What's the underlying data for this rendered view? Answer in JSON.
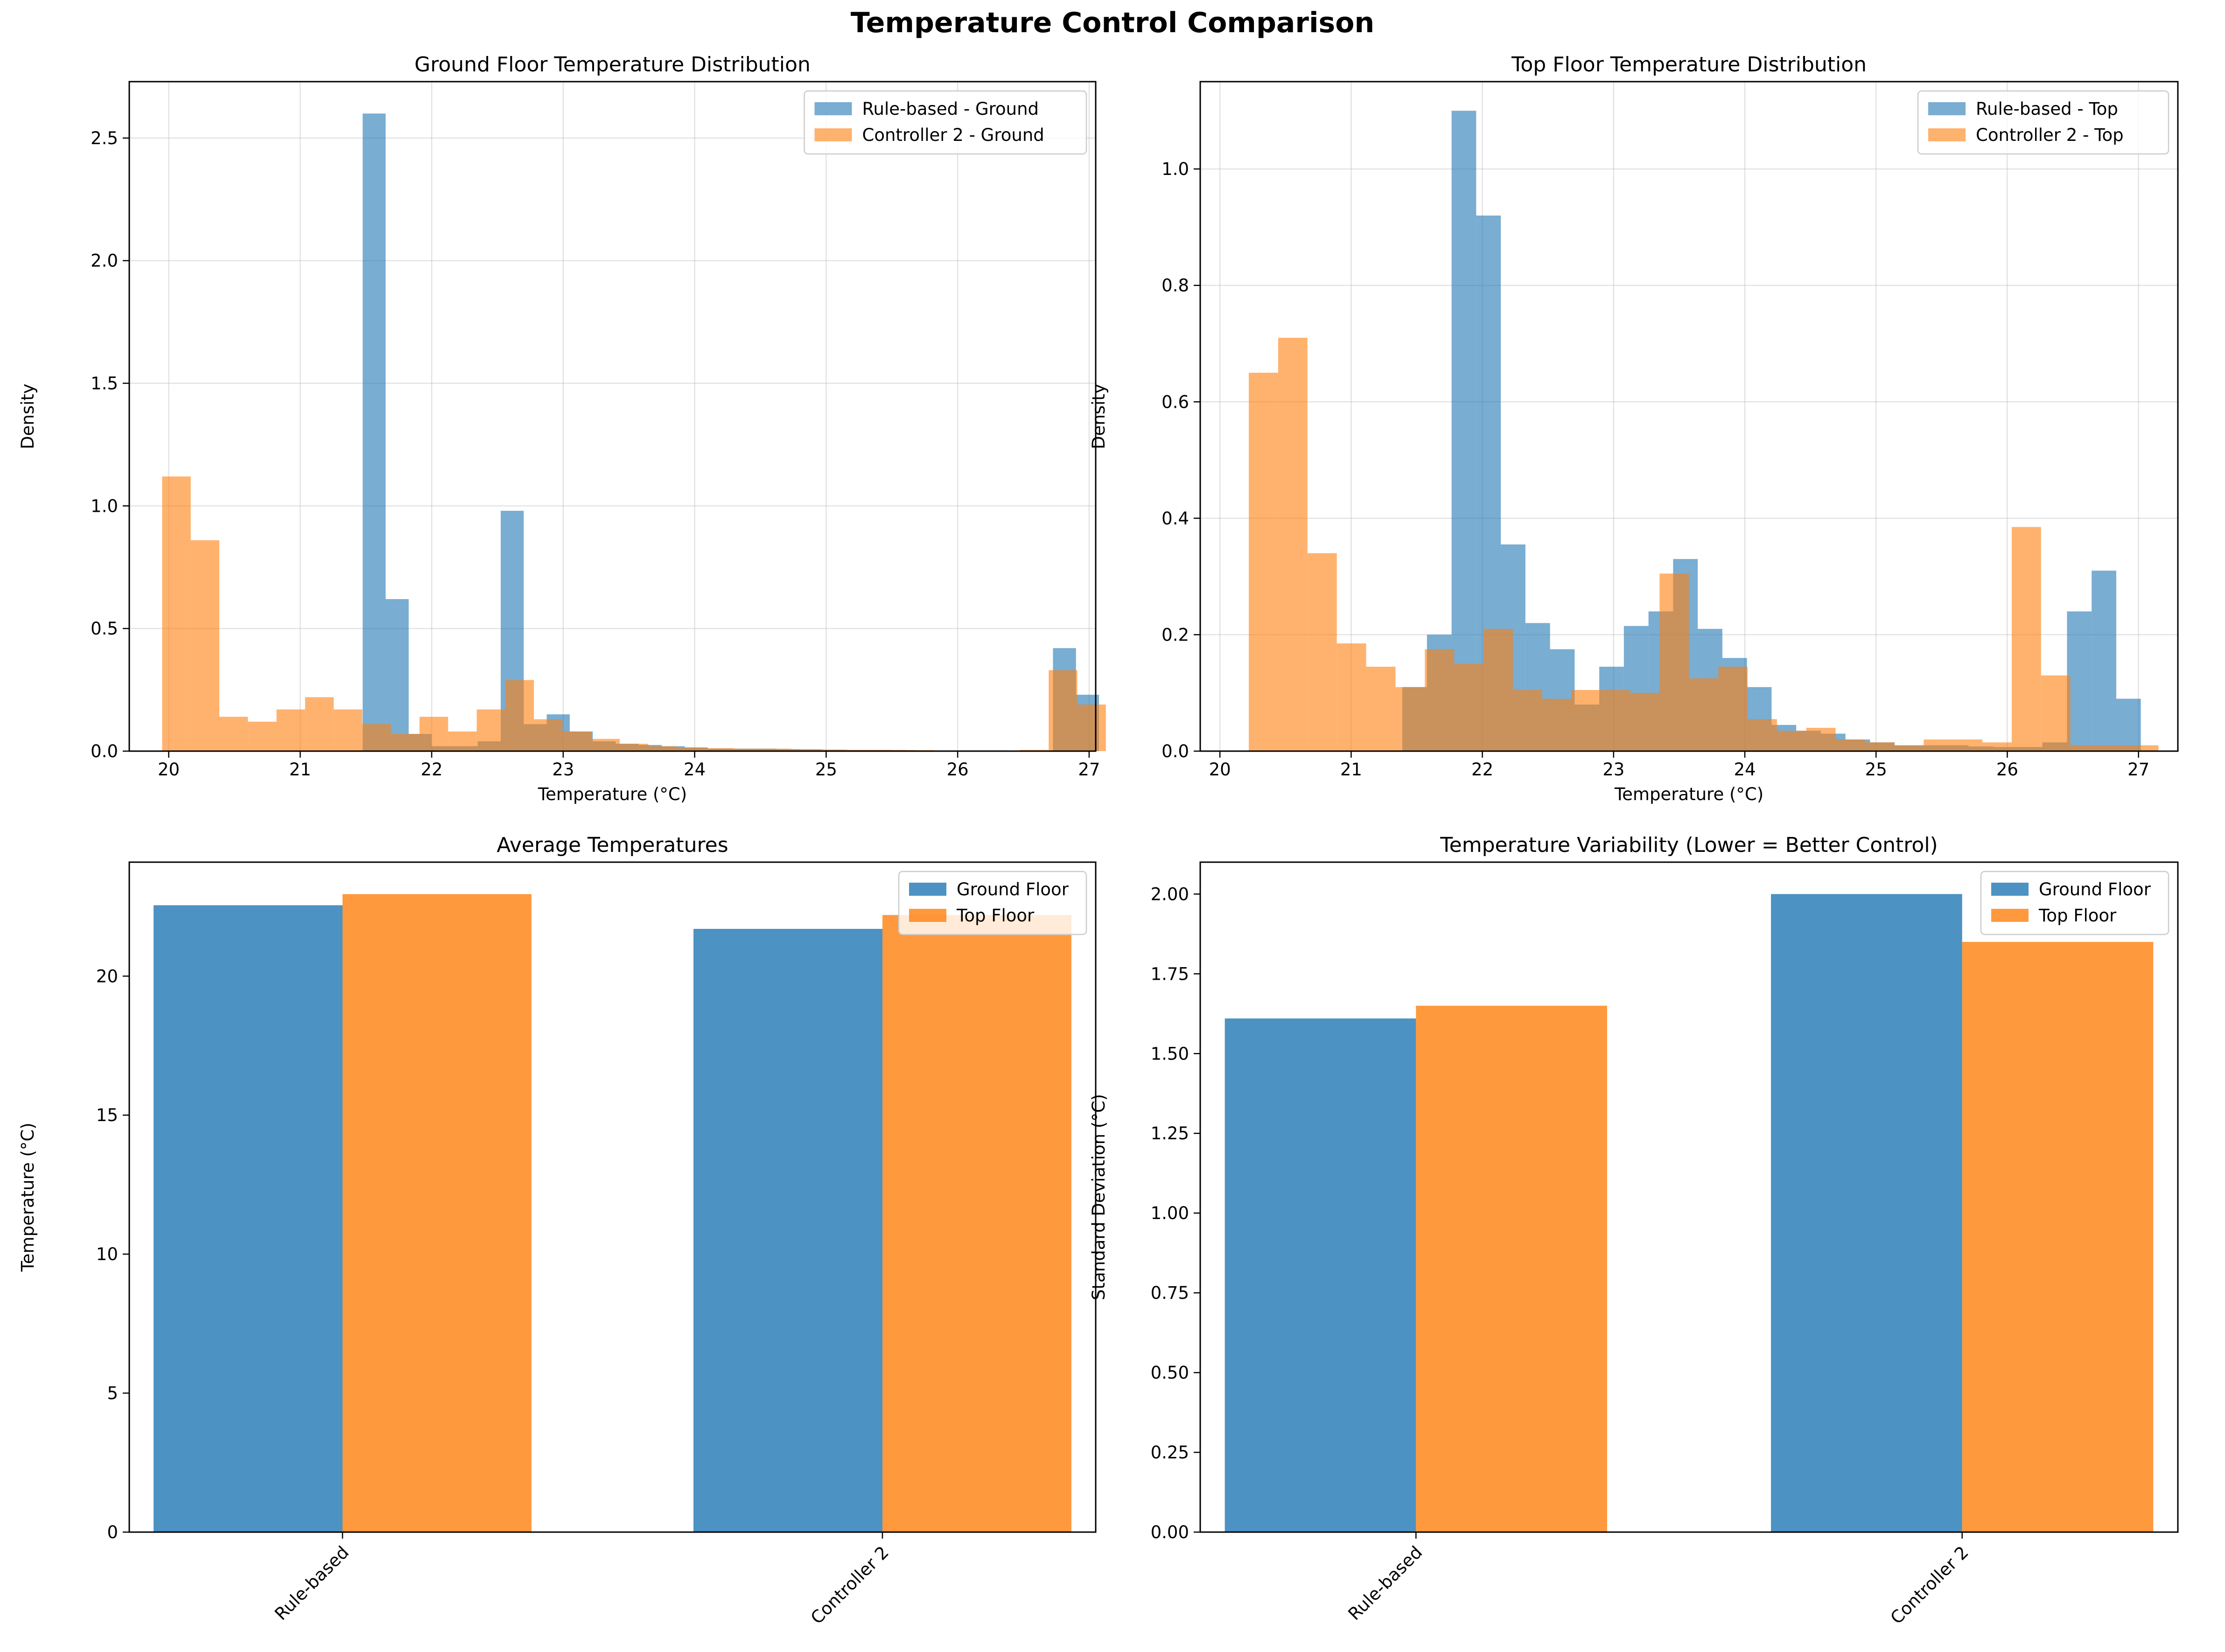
{
  "figure": {
    "title": "Temperature Control Comparison"
  },
  "colors": {
    "blue": "#1f77b4",
    "orange": "#ff7f0e"
  },
  "chart_data": [
    {
      "id": "ground",
      "type": "histogram",
      "title": "Ground Floor Temperature Distribution",
      "xlabel": "Temperature (°C)",
      "ylabel": "Density",
      "xlim": [
        19.7,
        27.05
      ],
      "ylim": [
        0,
        2.73
      ],
      "xticks": [
        20,
        21,
        22,
        23,
        24,
        25,
        26,
        27
      ],
      "yticks": [
        0.0,
        0.5,
        1.0,
        1.5,
        2.0,
        2.5
      ],
      "ytick_decimals": 1,
      "grid": true,
      "legend_position": "upper right",
      "series": [
        {
          "name": "Rule-based - Ground",
          "bin_start": 21.3,
          "bin_width": 0.175,
          "values": [
            0.0,
            2.6,
            0.62,
            0.07,
            0.02,
            0.02,
            0.04,
            0.98,
            0.11,
            0.15,
            0.08,
            0.04,
            0.03,
            0.025,
            0.02,
            0.015,
            0.01,
            0.01,
            0.01,
            0.008,
            0.007,
            0.006,
            0.005,
            0.005,
            0.004,
            0.003,
            0.003,
            0.003,
            0.003,
            0.002,
            0.002,
            0.42,
            0.23
          ]
        },
        {
          "name": "Controller 2 - Ground",
          "bin_start": 19.95,
          "bin_width": 0.2175,
          "values": [
            1.12,
            0.86,
            0.14,
            0.12,
            0.17,
            0.22,
            0.17,
            0.11,
            0.07,
            0.14,
            0.08,
            0.17,
            0.29,
            0.13,
            0.08,
            0.05,
            0.03,
            0.02,
            0.015,
            0.012,
            0.01,
            0.01,
            0.008,
            0.006,
            0.005,
            0.005,
            0.004,
            0.003,
            0.003,
            0.003,
            0.005,
            0.33,
            0.19
          ]
        }
      ]
    },
    {
      "id": "top",
      "type": "histogram",
      "title": "Top Floor Temperature Distribution",
      "xlabel": "Temperature (°C)",
      "ylabel": "Density",
      "xlim": [
        19.85,
        27.3
      ],
      "ylim": [
        0,
        1.15
      ],
      "xticks": [
        20,
        21,
        22,
        23,
        24,
        25,
        26,
        27
      ],
      "yticks": [
        0.0,
        0.2,
        0.4,
        0.6,
        0.8,
        1.0
      ],
      "ytick_decimals": 1,
      "grid": true,
      "legend_position": "upper right",
      "series": [
        {
          "name": "Rule-based - Top",
          "bin_start": 21.39,
          "bin_width": 0.1876,
          "values": [
            0.11,
            0.2,
            1.1,
            0.92,
            0.355,
            0.22,
            0.175,
            0.08,
            0.145,
            0.215,
            0.24,
            0.33,
            0.21,
            0.16,
            0.11,
            0.045,
            0.035,
            0.03,
            0.02,
            0.015,
            0.01,
            0.01,
            0.01,
            0.008,
            0.007,
            0.007,
            0.015,
            0.24,
            0.31,
            0.09
          ]
        },
        {
          "name": "Controller 2 - Top",
          "bin_start": 20.22,
          "bin_width": 0.2236,
          "values": [
            0.65,
            0.71,
            0.34,
            0.185,
            0.145,
            0.11,
            0.175,
            0.15,
            0.21,
            0.105,
            0.09,
            0.105,
            0.105,
            0.1,
            0.305,
            0.125,
            0.145,
            0.055,
            0.035,
            0.04,
            0.02,
            0.015,
            0.01,
            0.02,
            0.02,
            0.015,
            0.385,
            0.13,
            0.01,
            0.01,
            0.01
          ]
        }
      ]
    },
    {
      "id": "avg",
      "type": "bar",
      "title": "Average Temperatures",
      "xlabel": "",
      "ylabel": "Temperature (°C)",
      "categories": [
        "Rule-based",
        "Controller 2"
      ],
      "ylim": [
        0,
        24.1
      ],
      "yticks": [
        0,
        5,
        10,
        15,
        20
      ],
      "ytick_decimals": 0,
      "grid": false,
      "legend_position": "upper right",
      "series": [
        {
          "name": "Ground Floor",
          "values": [
            22.55,
            21.7
          ]
        },
        {
          "name": "Top Floor",
          "values": [
            22.95,
            22.2
          ]
        }
      ]
    },
    {
      "id": "std",
      "type": "bar",
      "title": "Temperature Variability (Lower = Better Control)",
      "xlabel": "",
      "ylabel": "Standard Deviation (°C)",
      "categories": [
        "Rule-based",
        "Controller 2"
      ],
      "ylim": [
        0,
        2.1
      ],
      "yticks": [
        0.0,
        0.25,
        0.5,
        0.75,
        1.0,
        1.25,
        1.5,
        1.75,
        2.0
      ],
      "ytick_decimals": 2,
      "grid": false,
      "legend_position": "upper right",
      "series": [
        {
          "name": "Ground Floor",
          "values": [
            1.61,
            2.0
          ]
        },
        {
          "name": "Top Floor",
          "values": [
            1.65,
            1.85
          ]
        }
      ]
    }
  ]
}
